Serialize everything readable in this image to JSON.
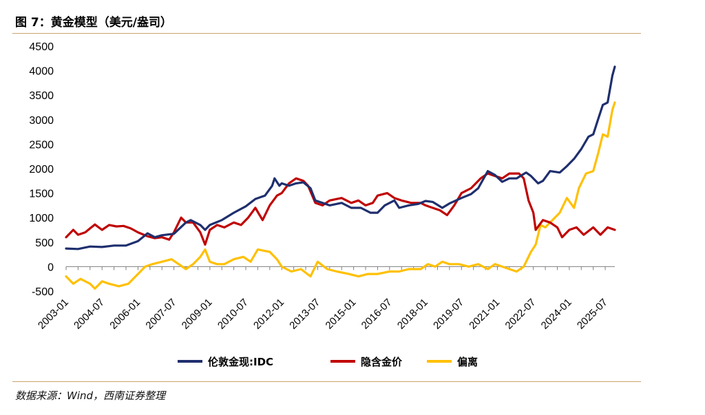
{
  "figure_title": "图 7：黄金模型（美元/盎司）",
  "source": "数据来源：Wind，西南证券整理",
  "colors": {
    "idc": "#1f2f6e",
    "implied": "#c00000",
    "deviation": "#ffc000",
    "rule": "#c8a46e"
  },
  "chart_data": {
    "type": "line",
    "title": "黄金模型（美元/盎司）",
    "xlabel": "",
    "ylabel": "",
    "ylim": [
      -500,
      4500
    ],
    "yticks": [
      4500,
      4000,
      3500,
      3000,
      2500,
      2000,
      1500,
      1000,
      500,
      0,
      -500
    ],
    "ytick_labels": [
      "4500",
      "4000",
      "3500",
      "3000",
      "2500",
      "2000",
      "1500",
      "1000",
      "500",
      "0",
      "-500"
    ],
    "xrange": [
      2003.0,
      2025.9
    ],
    "xtick_labels": [
      "2003-01",
      "2004-07",
      "2006-01",
      "2007-07",
      "2009-01",
      "2010-07",
      "2012-01",
      "2013-07",
      "2015-01",
      "2016-07",
      "2018-01",
      "2019-07",
      "2021-01",
      "2022-07",
      "2024-01",
      "2025-07"
    ],
    "xtick_years": [
      2003.0,
      2004.5,
      2006.0,
      2007.5,
      2009.0,
      2010.5,
      2012.0,
      2013.5,
      2015.0,
      2016.5,
      2018.0,
      2019.5,
      2021.0,
      2022.5,
      2024.0,
      2025.5
    ],
    "legend_position": "bottom",
    "series": [
      {
        "name": "伦敦金现:IDC",
        "key": "idc",
        "points": [
          [
            2003.0,
            370
          ],
          [
            2003.5,
            360
          ],
          [
            2004.0,
            410
          ],
          [
            2004.5,
            400
          ],
          [
            2005.0,
            430
          ],
          [
            2005.5,
            430
          ],
          [
            2006.0,
            520
          ],
          [
            2006.4,
            680
          ],
          [
            2006.7,
            600
          ],
          [
            2007.0,
            640
          ],
          [
            2007.5,
            670
          ],
          [
            2008.0,
            900
          ],
          [
            2008.2,
            950
          ],
          [
            2008.6,
            850
          ],
          [
            2008.8,
            750
          ],
          [
            2009.0,
            850
          ],
          [
            2009.5,
            950
          ],
          [
            2010.0,
            1100
          ],
          [
            2010.5,
            1230
          ],
          [
            2010.9,
            1380
          ],
          [
            2011.3,
            1450
          ],
          [
            2011.6,
            1650
          ],
          [
            2011.7,
            1800
          ],
          [
            2011.9,
            1650
          ],
          [
            2012.0,
            1700
          ],
          [
            2012.3,
            1650
          ],
          [
            2012.6,
            1700
          ],
          [
            2012.9,
            1720
          ],
          [
            2013.2,
            1600
          ],
          [
            2013.4,
            1350
          ],
          [
            2013.7,
            1300
          ],
          [
            2014.0,
            1250
          ],
          [
            2014.5,
            1300
          ],
          [
            2014.9,
            1200
          ],
          [
            2015.3,
            1200
          ],
          [
            2015.7,
            1100
          ],
          [
            2016.0,
            1100
          ],
          [
            2016.3,
            1250
          ],
          [
            2016.7,
            1350
          ],
          [
            2016.9,
            1200
          ],
          [
            2017.3,
            1250
          ],
          [
            2017.7,
            1280
          ],
          [
            2018.0,
            1340
          ],
          [
            2018.3,
            1320
          ],
          [
            2018.7,
            1200
          ],
          [
            2019.0,
            1290
          ],
          [
            2019.5,
            1400
          ],
          [
            2019.9,
            1480
          ],
          [
            2020.2,
            1600
          ],
          [
            2020.6,
            1950
          ],
          [
            2020.9,
            1870
          ],
          [
            2021.2,
            1730
          ],
          [
            2021.5,
            1800
          ],
          [
            2021.8,
            1800
          ],
          [
            2022.2,
            1920
          ],
          [
            2022.4,
            1850
          ],
          [
            2022.7,
            1700
          ],
          [
            2022.9,
            1750
          ],
          [
            2023.2,
            1950
          ],
          [
            2023.6,
            1920
          ],
          [
            2023.9,
            2050
          ],
          [
            2024.2,
            2200
          ],
          [
            2024.5,
            2400
          ],
          [
            2024.8,
            2650
          ],
          [
            2025.0,
            2700
          ],
          [
            2025.2,
            3000
          ],
          [
            2025.4,
            3300
          ],
          [
            2025.6,
            3350
          ],
          [
            2025.8,
            3900
          ],
          [
            2025.9,
            4080
          ]
        ]
      },
      {
        "name": "隐含金价",
        "key": "implied",
        "points": [
          [
            2003.0,
            600
          ],
          [
            2003.3,
            750
          ],
          [
            2003.5,
            650
          ],
          [
            2003.8,
            700
          ],
          [
            2004.0,
            780
          ],
          [
            2004.2,
            860
          ],
          [
            2004.5,
            750
          ],
          [
            2004.8,
            850
          ],
          [
            2005.1,
            820
          ],
          [
            2005.4,
            830
          ],
          [
            2005.7,
            780
          ],
          [
            2006.0,
            700
          ],
          [
            2006.4,
            620
          ],
          [
            2006.7,
            580
          ],
          [
            2007.0,
            600
          ],
          [
            2007.3,
            550
          ],
          [
            2007.5,
            700
          ],
          [
            2007.8,
            1000
          ],
          [
            2008.0,
            900
          ],
          [
            2008.3,
            900
          ],
          [
            2008.6,
            700
          ],
          [
            2008.8,
            450
          ],
          [
            2009.0,
            750
          ],
          [
            2009.3,
            850
          ],
          [
            2009.6,
            800
          ],
          [
            2010.0,
            900
          ],
          [
            2010.3,
            850
          ],
          [
            2010.6,
            1000
          ],
          [
            2010.9,
            1200
          ],
          [
            2011.2,
            950
          ],
          [
            2011.5,
            1250
          ],
          [
            2011.8,
            1450
          ],
          [
            2012.0,
            1500
          ],
          [
            2012.3,
            1700
          ],
          [
            2012.6,
            1800
          ],
          [
            2012.9,
            1750
          ],
          [
            2013.1,
            1650
          ],
          [
            2013.4,
            1300
          ],
          [
            2013.7,
            1250
          ],
          [
            2014.0,
            1350
          ],
          [
            2014.5,
            1400
          ],
          [
            2014.9,
            1300
          ],
          [
            2015.2,
            1350
          ],
          [
            2015.5,
            1250
          ],
          [
            2015.8,
            1300
          ],
          [
            2016.0,
            1450
          ],
          [
            2016.4,
            1500
          ],
          [
            2016.7,
            1400
          ],
          [
            2017.0,
            1350
          ],
          [
            2017.4,
            1300
          ],
          [
            2017.8,
            1300
          ],
          [
            2018.0,
            1250
          ],
          [
            2018.3,
            1200
          ],
          [
            2018.6,
            1150
          ],
          [
            2018.9,
            1050
          ],
          [
            2019.2,
            1250
          ],
          [
            2019.5,
            1500
          ],
          [
            2019.9,
            1600
          ],
          [
            2020.3,
            1800
          ],
          [
            2020.6,
            1900
          ],
          [
            2020.9,
            1850
          ],
          [
            2021.2,
            1800
          ],
          [
            2021.5,
            1900
          ],
          [
            2021.9,
            1900
          ],
          [
            2022.1,
            1800
          ],
          [
            2022.3,
            1350
          ],
          [
            2022.5,
            1100
          ],
          [
            2022.6,
            750
          ],
          [
            2022.9,
            950
          ],
          [
            2023.2,
            900
          ],
          [
            2023.5,
            800
          ],
          [
            2023.7,
            600
          ],
          [
            2024.0,
            750
          ],
          [
            2024.3,
            800
          ],
          [
            2024.6,
            650
          ],
          [
            2025.0,
            800
          ],
          [
            2025.3,
            650
          ],
          [
            2025.6,
            800
          ],
          [
            2025.9,
            750
          ]
        ]
      },
      {
        "name": "偏离",
        "key": "deviation",
        "points": [
          [
            2003.0,
            -200
          ],
          [
            2003.3,
            -350
          ],
          [
            2003.6,
            -250
          ],
          [
            2004.0,
            -350
          ],
          [
            2004.2,
            -450
          ],
          [
            2004.5,
            -300
          ],
          [
            2004.8,
            -350
          ],
          [
            2005.2,
            -400
          ],
          [
            2005.6,
            -350
          ],
          [
            2006.0,
            -150
          ],
          [
            2006.3,
            0
          ],
          [
            2006.6,
            50
          ],
          [
            2007.0,
            100
          ],
          [
            2007.4,
            150
          ],
          [
            2007.7,
            50
          ],
          [
            2008.0,
            -50
          ],
          [
            2008.3,
            50
          ],
          [
            2008.6,
            200
          ],
          [
            2008.8,
            350
          ],
          [
            2009.0,
            100
          ],
          [
            2009.3,
            50
          ],
          [
            2009.6,
            50
          ],
          [
            2010.0,
            150
          ],
          [
            2010.4,
            200
          ],
          [
            2010.7,
            100
          ],
          [
            2011.0,
            350
          ],
          [
            2011.5,
            300
          ],
          [
            2011.8,
            150
          ],
          [
            2012.0,
            0
          ],
          [
            2012.4,
            -100
          ],
          [
            2012.8,
            -50
          ],
          [
            2013.2,
            -200
          ],
          [
            2013.5,
            100
          ],
          [
            2013.9,
            -50
          ],
          [
            2014.3,
            -100
          ],
          [
            2014.8,
            -150
          ],
          [
            2015.2,
            -200
          ],
          [
            2015.6,
            -150
          ],
          [
            2016.0,
            -150
          ],
          [
            2016.5,
            -100
          ],
          [
            2016.9,
            -100
          ],
          [
            2017.3,
            -50
          ],
          [
            2017.8,
            -50
          ],
          [
            2018.1,
            50
          ],
          [
            2018.4,
            0
          ],
          [
            2018.7,
            100
          ],
          [
            2019.0,
            50
          ],
          [
            2019.4,
            50
          ],
          [
            2019.8,
            0
          ],
          [
            2020.2,
            50
          ],
          [
            2020.6,
            -50
          ],
          [
            2020.9,
            50
          ],
          [
            2021.2,
            0
          ],
          [
            2021.5,
            -50
          ],
          [
            2021.8,
            -100
          ],
          [
            2022.1,
            0
          ],
          [
            2022.4,
            300
          ],
          [
            2022.6,
            450
          ],
          [
            2022.8,
            850
          ],
          [
            2023.0,
            800
          ],
          [
            2023.3,
            950
          ],
          [
            2023.6,
            1100
          ],
          [
            2023.9,
            1400
          ],
          [
            2024.2,
            1200
          ],
          [
            2024.4,
            1600
          ],
          [
            2024.7,
            1900
          ],
          [
            2025.0,
            1950
          ],
          [
            2025.2,
            2300
          ],
          [
            2025.4,
            2700
          ],
          [
            2025.6,
            2650
          ],
          [
            2025.8,
            3200
          ],
          [
            2025.9,
            3350
          ]
        ]
      }
    ]
  }
}
